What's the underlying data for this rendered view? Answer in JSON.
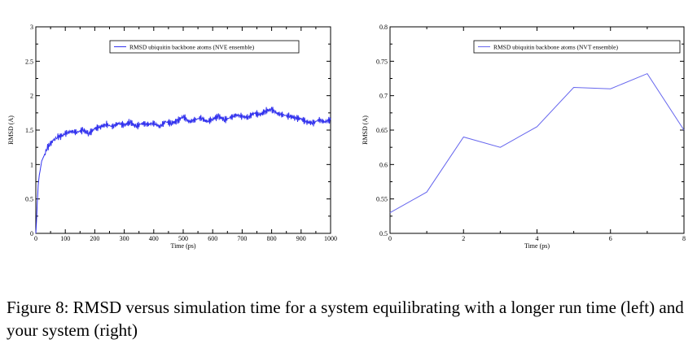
{
  "caption": "Figure 8: RMSD versus simulation time for a system equilibrating with a longer run time (left) and your system (right)",
  "chart_data": [
    {
      "type": "line",
      "xlabel": "Time (ps)",
      "ylabel": "RMSD (A)",
      "xlim": [
        0,
        1000
      ],
      "ylim": [
        0,
        3
      ],
      "xticks": [
        "0",
        "100",
        "200",
        "300",
        "400",
        "500",
        "600",
        "700",
        "800",
        "900",
        "1000"
      ],
      "yticks": [
        "0",
        "0.5",
        "1",
        "1.5",
        "2",
        "2.5",
        "3"
      ],
      "legend": "top-center",
      "grid": false,
      "series": [
        {
          "name": "RMSD ubiquitin backbone atoms (NVE ensemble)",
          "color": "#3333ee",
          "x": [
            0,
            2,
            5,
            8,
            12,
            16,
            20,
            25,
            30,
            40,
            50,
            60,
            75,
            90,
            100,
            120,
            140,
            160,
            180,
            200,
            220,
            240,
            260,
            280,
            300,
            320,
            340,
            360,
            380,
            400,
            420,
            440,
            460,
            480,
            500,
            520,
            540,
            560,
            580,
            600,
            620,
            640,
            660,
            680,
            700,
            720,
            740,
            760,
            780,
            800,
            820,
            840,
            860,
            880,
            900,
            920,
            940,
            960,
            980,
            1000
          ],
          "y": [
            0.0,
            0.15,
            0.45,
            0.7,
            0.85,
            0.95,
            1.05,
            1.1,
            1.15,
            1.25,
            1.3,
            1.35,
            1.4,
            1.42,
            1.45,
            1.48,
            1.47,
            1.5,
            1.45,
            1.52,
            1.55,
            1.58,
            1.55,
            1.6,
            1.57,
            1.62,
            1.55,
            1.6,
            1.58,
            1.6,
            1.55,
            1.62,
            1.6,
            1.63,
            1.7,
            1.62,
            1.65,
            1.68,
            1.62,
            1.66,
            1.7,
            1.65,
            1.68,
            1.72,
            1.7,
            1.68,
            1.75,
            1.72,
            1.78,
            1.8,
            1.74,
            1.72,
            1.7,
            1.68,
            1.66,
            1.62,
            1.6,
            1.65,
            1.62,
            1.65
          ]
        }
      ]
    },
    {
      "type": "line",
      "xlabel": "Time (ps)",
      "ylabel": "RMSD (A)",
      "xlim": [
        0,
        8
      ],
      "ylim": [
        0.5,
        0.8
      ],
      "xticks": [
        "0",
        "2",
        "4",
        "6",
        "8"
      ],
      "yticks": [
        "0.5",
        "0.55",
        "0.6",
        "0.65",
        "0.7",
        "0.75",
        "0.8"
      ],
      "legend": "top-right",
      "grid": false,
      "series": [
        {
          "name": "RMSD ubiquitin backbone atoms (NVT ensemble)",
          "color": "#6666ee",
          "x": [
            0,
            1,
            2,
            3,
            4,
            5,
            6,
            7,
            8
          ],
          "y": [
            0.53,
            0.56,
            0.64,
            0.625,
            0.655,
            0.712,
            0.71,
            0.732,
            0.65
          ]
        }
      ]
    }
  ]
}
